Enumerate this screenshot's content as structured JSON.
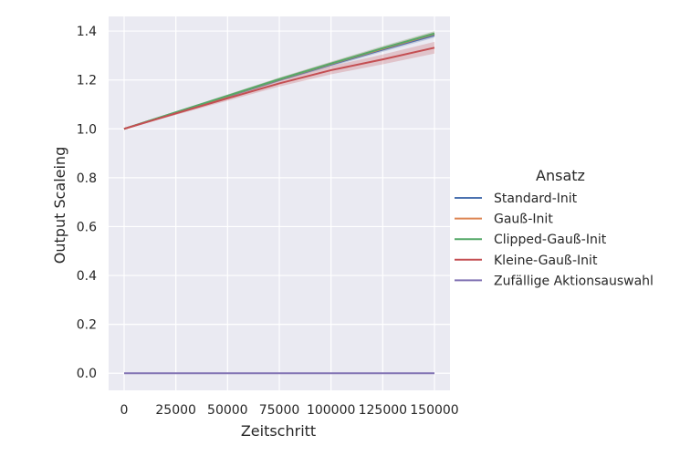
{
  "chart_data": {
    "type": "line",
    "xlabel": "Zeitschritt",
    "ylabel": "Output Scaleing",
    "xlim": [
      -7500,
      157500
    ],
    "ylim": [
      -0.07,
      1.46
    ],
    "xticks": [
      0,
      25000,
      50000,
      75000,
      100000,
      125000,
      150000
    ],
    "xtick_labels": [
      "0",
      "25000",
      "50000",
      "75000",
      "100000",
      "125000",
      "150000"
    ],
    "yticks": [
      0.0,
      0.2,
      0.4,
      0.6,
      0.8,
      1.0,
      1.2,
      1.4
    ],
    "ytick_labels": [
      "0.0",
      "0.2",
      "0.4",
      "0.6",
      "0.8",
      "1.0",
      "1.2",
      "1.4"
    ],
    "grid": true,
    "background": "#eaeaf2",
    "legend": {
      "title": "Ansatz",
      "placement": "right-outside"
    },
    "x": [
      0,
      25000,
      50000,
      75000,
      100000,
      125000,
      150000
    ],
    "series": [
      {
        "name": "Standard-Init",
        "color": "#4c72b0",
        "values": [
          1.0,
          1.067,
          1.133,
          1.2,
          1.263,
          1.324,
          1.383
        ],
        "band": [
          0.0,
          0.004,
          0.006,
          0.007,
          0.008,
          0.009,
          0.01
        ]
      },
      {
        "name": "Gauß-Init",
        "color": "#dd8452",
        "values": [
          1.0,
          1.067,
          1.134,
          1.202,
          1.266,
          1.328,
          1.388
        ],
        "band": [
          0.0,
          0.004,
          0.006,
          0.007,
          0.008,
          0.009,
          0.01
        ]
      },
      {
        "name": "Clipped-Gauß-Init",
        "color": "#55a868",
        "values": [
          1.0,
          1.068,
          1.135,
          1.203,
          1.267,
          1.33,
          1.39
        ],
        "band": [
          0.0,
          0.004,
          0.006,
          0.007,
          0.008,
          0.009,
          0.01
        ]
      },
      {
        "name": "Kleine-Gauß-Init",
        "color": "#c44e52",
        "values": [
          1.0,
          1.063,
          1.125,
          1.186,
          1.24,
          1.284,
          1.332
        ],
        "band": [
          0.0,
          0.006,
          0.01,
          0.013,
          0.017,
          0.02,
          0.024
        ]
      },
      {
        "name": "Zufällige Aktionsauswahl",
        "color": "#8172b3",
        "values": [
          0.0,
          0.0,
          0.0,
          0.0,
          0.0,
          0.0,
          0.0
        ],
        "band": [
          0.0,
          0.0,
          0.0,
          0.0,
          0.0,
          0.0,
          0.0
        ]
      }
    ]
  }
}
